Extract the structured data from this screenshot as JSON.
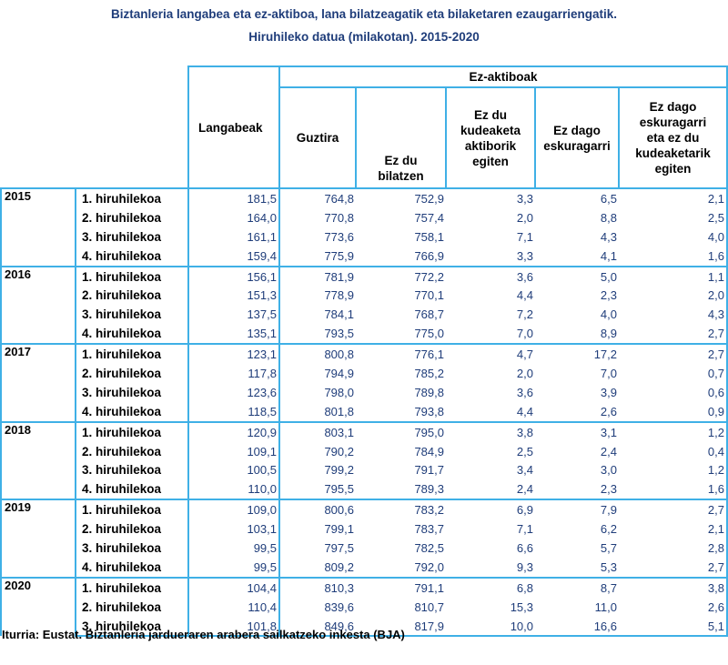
{
  "title_line1": "Biztanleria langabea eta ez-aktiboa, lana bilatzeagatik eta bilaketaren ezaugarriengatik.",
  "title_line2": "Hiruhileko datua (milakotan). 2015-2020",
  "headers": {
    "langabeak": "Langabeak",
    "ez_aktiboak": "Ez-aktiboak",
    "guztira": "Guztira",
    "ez_du_bilatzen": [
      "Ez du",
      "bilatzen"
    ],
    "kudeaketa": [
      "Ez du",
      "kudeaketa",
      "aktiborik",
      "egiten"
    ],
    "eskuragarri": [
      "Ez dago",
      "eskuragarri"
    ],
    "eskuragarri_kudeaketa": [
      "Ez dago",
      "eskuragarri",
      "eta ez du",
      "kudeaketarik",
      "egiten"
    ]
  },
  "years": [
    {
      "year": "2015",
      "rows": [
        {
          "q": "1. hiruhilekoa",
          "v": [
            "181,5",
            "764,8",
            "752,9",
            "3,3",
            "6,5",
            "2,1"
          ]
        },
        {
          "q": "2. hiruhilekoa",
          "v": [
            "164,0",
            "770,8",
            "757,4",
            "2,0",
            "8,8",
            "2,5"
          ]
        },
        {
          "q": "3. hiruhilekoa",
          "v": [
            "161,1",
            "773,6",
            "758,1",
            "7,1",
            "4,3",
            "4,0"
          ]
        },
        {
          "q": "4. hiruhilekoa",
          "v": [
            "159,4",
            "775,9",
            "766,9",
            "3,3",
            "4,1",
            "1,6"
          ]
        }
      ]
    },
    {
      "year": "2016",
      "rows": [
        {
          "q": "1. hiruhilekoa",
          "v": [
            "156,1",
            "781,9",
            "772,2",
            "3,6",
            "5,0",
            "1,1"
          ]
        },
        {
          "q": "2. hiruhilekoa",
          "v": [
            "151,3",
            "778,9",
            "770,1",
            "4,4",
            "2,3",
            "2,0"
          ]
        },
        {
          "q": "3. hiruhilekoa",
          "v": [
            "137,5",
            "784,1",
            "768,7",
            "7,2",
            "4,0",
            "4,3"
          ]
        },
        {
          "q": "4. hiruhilekoa",
          "v": [
            "135,1",
            "793,5",
            "775,0",
            "7,0",
            "8,9",
            "2,7"
          ]
        }
      ]
    },
    {
      "year": "2017",
      "rows": [
        {
          "q": "1. hiruhilekoa",
          "v": [
            "123,1",
            "800,8",
            "776,1",
            "4,7",
            "17,2",
            "2,7"
          ]
        },
        {
          "q": "2. hiruhilekoa",
          "v": [
            "117,8",
            "794,9",
            "785,2",
            "2,0",
            "7,0",
            "0,7"
          ]
        },
        {
          "q": "3. hiruhilekoa",
          "v": [
            "123,6",
            "798,0",
            "789,8",
            "3,6",
            "3,9",
            "0,6"
          ]
        },
        {
          "q": "4. hiruhilekoa",
          "v": [
            "118,5",
            "801,8",
            "793,8",
            "4,4",
            "2,6",
            "0,9"
          ]
        }
      ]
    },
    {
      "year": "2018",
      "rows": [
        {
          "q": "1. hiruhilekoa",
          "v": [
            "120,9",
            "803,1",
            "795,0",
            "3,8",
            "3,1",
            "1,2"
          ]
        },
        {
          "q": "2. hiruhilekoa",
          "v": [
            "109,1",
            "790,2",
            "784,9",
            "2,5",
            "2,4",
            "0,4"
          ]
        },
        {
          "q": "3. hiruhilekoa",
          "v": [
            "100,5",
            "799,2",
            "791,7",
            "3,4",
            "3,0",
            "1,2"
          ]
        },
        {
          "q": "4. hiruhilekoa",
          "v": [
            "110,0",
            "795,5",
            "789,3",
            "2,4",
            "2,3",
            "1,6"
          ]
        }
      ]
    },
    {
      "year": "2019",
      "rows": [
        {
          "q": "1. hiruhilekoa",
          "v": [
            "109,0",
            "800,6",
            "783,2",
            "6,9",
            "7,9",
            "2,7"
          ]
        },
        {
          "q": "2. hiruhilekoa",
          "v": [
            "103,1",
            "799,1",
            "783,7",
            "7,1",
            "6,2",
            "2,1"
          ]
        },
        {
          "q": "3. hiruhilekoa",
          "v": [
            "99,5",
            "797,5",
            "782,5",
            "6,6",
            "5,7",
            "2,8"
          ]
        },
        {
          "q": "4. hiruhilekoa",
          "v": [
            "99,5",
            "809,2",
            "792,0",
            "9,3",
            "5,3",
            "2,7"
          ]
        }
      ]
    },
    {
      "year": "2020",
      "rows": [
        {
          "q": "1. hiruhilekoa",
          "v": [
            "104,4",
            "810,3",
            "791,1",
            "6,8",
            "8,7",
            "3,8"
          ]
        },
        {
          "q": "2. hiruhilekoa",
          "v": [
            "110,4",
            "839,6",
            "810,7",
            "15,3",
            "11,0",
            "2,6"
          ]
        },
        {
          "q": "3. hiruhilekoa",
          "v": [
            "101,8",
            "849,6",
            "817,9",
            "10,0",
            "16,6",
            "5,1"
          ]
        }
      ]
    }
  ],
  "source": "Iturria: Eustat. Biztanleria jardueraren arabera sailkatzeko inkesta (BJA)"
}
